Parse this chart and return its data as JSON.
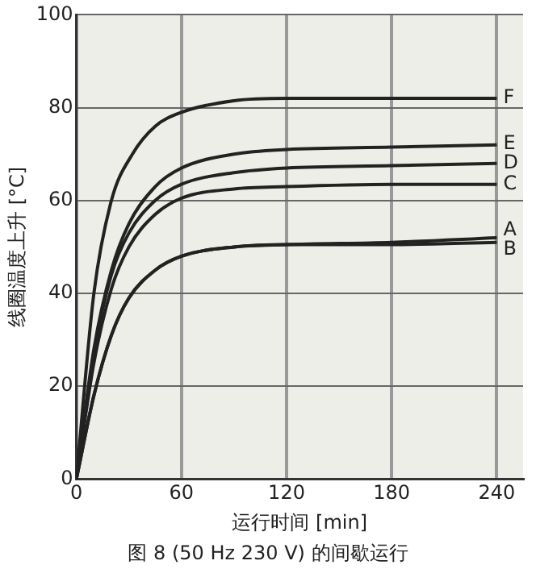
{
  "chart_data": {
    "type": "line",
    "xlabel": "运行时间 [min]",
    "ylabel": "线圈温度上升 [°C]",
    "annotations": [
      "图 8 (50 Hz 230 V) 的间歇运行"
    ],
    "xlim": [
      0,
      255
    ],
    "xticks": [
      0,
      60,
      120,
      180,
      240
    ],
    "ylim": [
      0,
      100
    ],
    "yticks": [
      0,
      20,
      40,
      60,
      80,
      100
    ],
    "grid": true,
    "legend": false,
    "marker": "none",
    "line_style": "solid",
    "series": [
      {
        "name": "F",
        "color": "#222222",
        "x": [
          0,
          10,
          20,
          32,
          45,
          60,
          90,
          120,
          180,
          240
        ],
        "values": [
          0,
          40,
          60,
          70,
          76,
          79,
          81.5,
          82,
          82,
          82
        ]
      },
      {
        "name": "E",
        "color": "#222222",
        "x": [
          0,
          10,
          20,
          30,
          45,
          60,
          90,
          120,
          180,
          240
        ],
        "values": [
          0,
          28,
          45,
          55,
          63,
          67,
          70,
          71,
          71.5,
          72
        ]
      },
      {
        "name": "D",
        "color": "#222222",
        "x": [
          0,
          10,
          20,
          30,
          45,
          60,
          90,
          120,
          180,
          240
        ],
        "values": [
          0,
          27,
          44,
          53,
          60,
          63.5,
          66,
          67,
          67.5,
          68
        ]
      },
      {
        "name": "C",
        "color": "#222222",
        "x": [
          0,
          10,
          20,
          30,
          45,
          60,
          90,
          120,
          180,
          240
        ],
        "values": [
          0,
          25,
          41,
          50,
          57,
          60.5,
          62.5,
          63,
          63.5,
          63.5
        ]
      },
      {
        "name": "A",
        "color": "#222222",
        "x": [
          0,
          10,
          20,
          30,
          45,
          60,
          90,
          120,
          180,
          240
        ],
        "values": [
          0,
          18,
          31,
          39,
          45,
          48,
          50,
          50.5,
          51,
          52
        ]
      },
      {
        "name": "B",
        "color": "#222222",
        "x": [
          0,
          10,
          20,
          30,
          45,
          60,
          90,
          120,
          180,
          240
        ],
        "values": [
          0,
          18,
          31,
          39,
          45,
          48,
          50,
          50.5,
          50.5,
          51
        ]
      }
    ]
  }
}
